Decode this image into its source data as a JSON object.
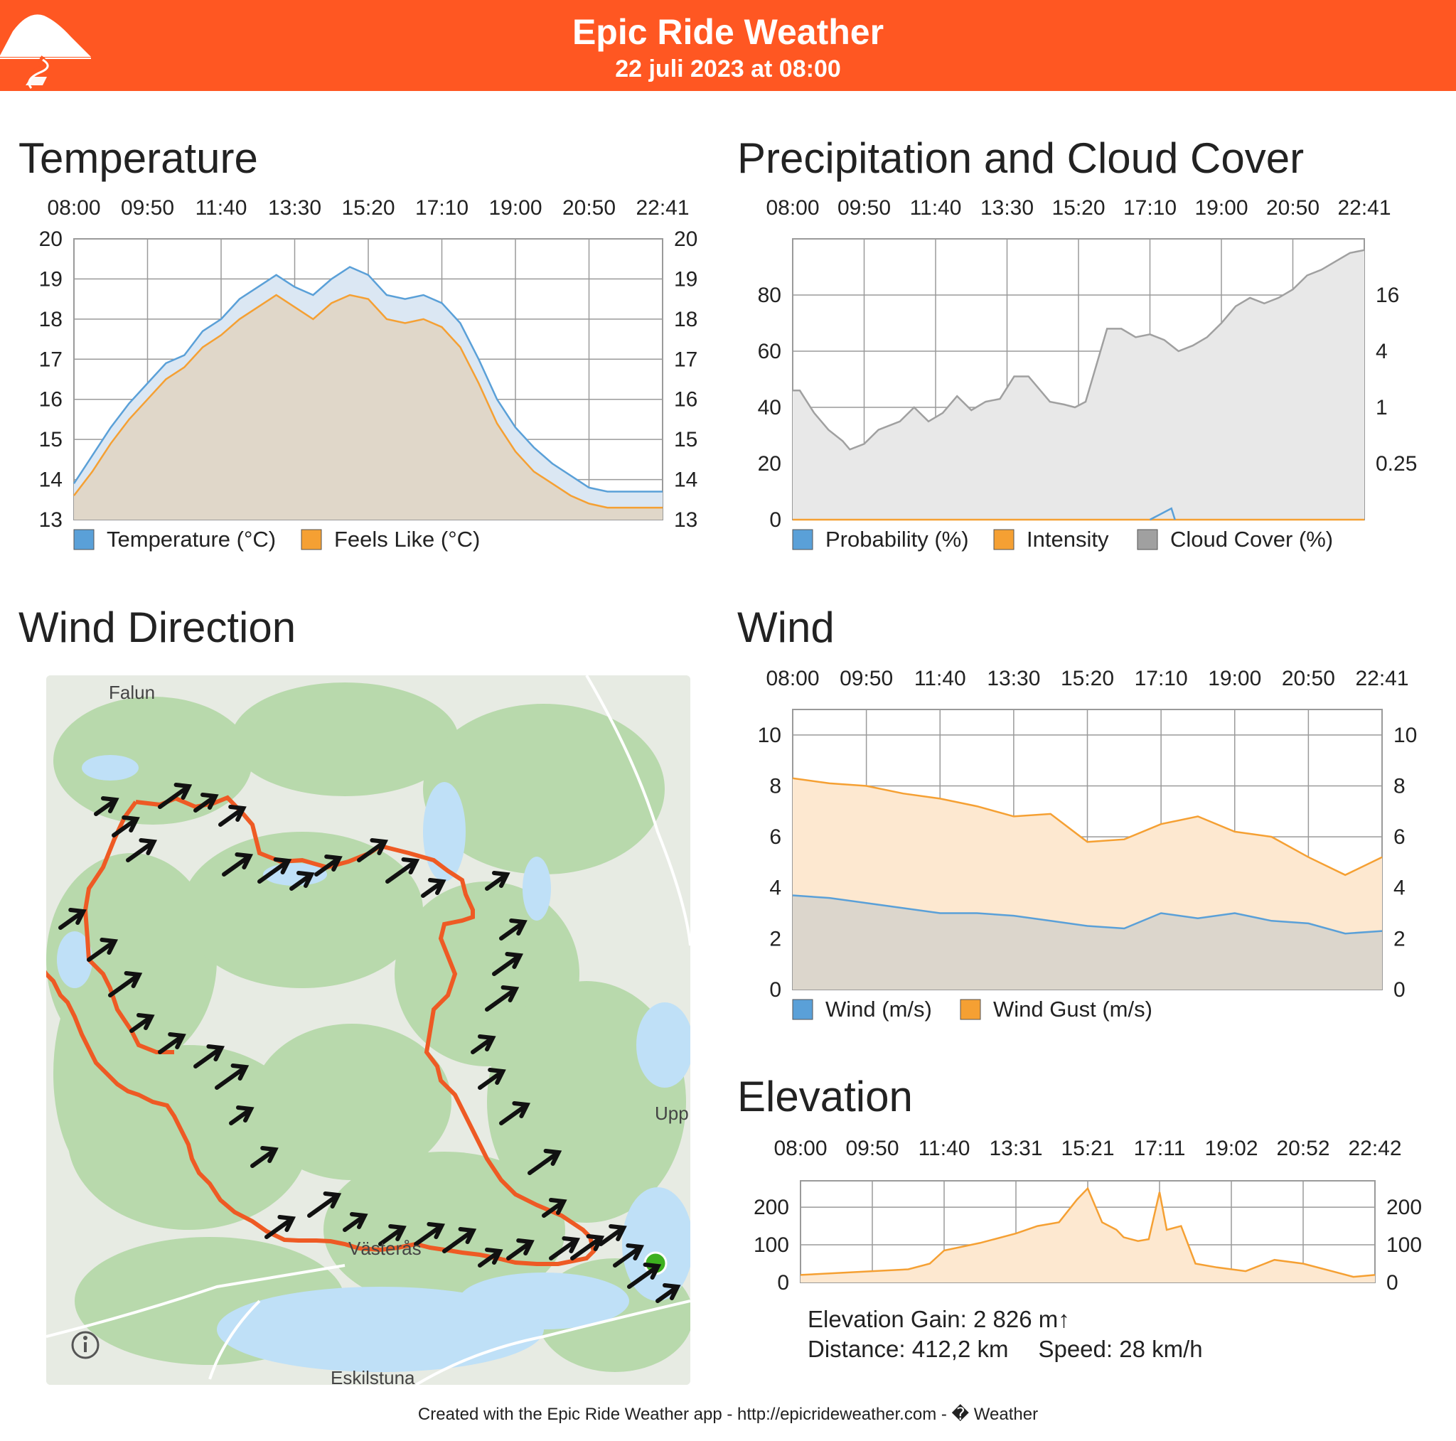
{
  "header": {
    "title": "Epic Ride Weather",
    "date": "22 juli 2023 at 08:00"
  },
  "sections": {
    "temperature": "Temperature",
    "precip": "Precipitation and Cloud Cover",
    "wind_direction": "Wind Direction",
    "wind": "Wind",
    "elevation": "Elevation"
  },
  "elevation_stats": {
    "gain": "Elevation Gain: 2 826 m↑",
    "distance": "Distance: 412,2 km",
    "speed": "Speed: 28 km/h"
  },
  "footer": "Created with the Epic Ride Weather app - http://epicrideweather.com - � Weather",
  "map": {
    "labels": [
      "Falun",
      "Västerås",
      "Eskilstuna",
      "Upp"
    ],
    "colors": {
      "route": "#ee5a24",
      "land": "#e7ebe3",
      "forest": "#b8d9ac",
      "water": "#bfe0f7",
      "start": "#3db01f",
      "arrow": "#111111"
    }
  },
  "colors": {
    "header": "#ff5722",
    "blue": "#5aa0d8",
    "orange": "#f5a033",
    "gray": "#a0a0a0"
  },
  "chart_data": [
    {
      "id": "temperature",
      "type": "area",
      "x_labels": [
        "08:00",
        "09:50",
        "11:40",
        "13:30",
        "15:20",
        "17:10",
        "19:00",
        "20:50",
        "22:41"
      ],
      "x_range": [
        0,
        8
      ],
      "ylim": [
        13,
        20
      ],
      "y_ticks": [
        "13",
        "14",
        "15",
        "16",
        "17",
        "18",
        "19",
        "20"
      ],
      "y_ticks_right": [
        "13",
        "14",
        "15",
        "16",
        "17",
        "18",
        "19",
        "20"
      ],
      "grid": true,
      "legend": "bottom",
      "series": [
        {
          "name": "Temperature (°C)",
          "color": "#5aa0d8",
          "fill": "#dbe7f3",
          "x": [
            0,
            0.25,
            0.5,
            0.75,
            1,
            1.25,
            1.5,
            1.75,
            2,
            2.25,
            2.5,
            2.75,
            3,
            3.25,
            3.5,
            3.75,
            4,
            4.25,
            4.5,
            4.75,
            5,
            5.25,
            5.5,
            5.75,
            6,
            6.25,
            6.5,
            6.75,
            7,
            7.25,
            7.5,
            7.75,
            8
          ],
          "values": [
            13.9,
            14.6,
            15.3,
            15.9,
            16.4,
            16.9,
            17.1,
            17.7,
            18.0,
            18.5,
            18.8,
            19.1,
            18.8,
            18.6,
            19.0,
            19.3,
            19.1,
            18.6,
            18.5,
            18.6,
            18.4,
            17.9,
            17.0,
            16.0,
            15.3,
            14.8,
            14.4,
            14.1,
            13.8,
            13.7,
            13.7,
            13.7,
            13.7
          ]
        },
        {
          "name": "Feels Like (°C)",
          "color": "#f5a033",
          "fill": "#e0d7c9",
          "x": [
            0,
            0.25,
            0.5,
            0.75,
            1,
            1.25,
            1.5,
            1.75,
            2,
            2.25,
            2.5,
            2.75,
            3,
            3.25,
            3.5,
            3.75,
            4,
            4.25,
            4.5,
            4.75,
            5,
            5.25,
            5.5,
            5.75,
            6,
            6.25,
            6.5,
            6.75,
            7,
            7.25,
            7.5,
            7.75,
            8
          ],
          "values": [
            13.6,
            14.2,
            14.9,
            15.5,
            16.0,
            16.5,
            16.8,
            17.3,
            17.6,
            18.0,
            18.3,
            18.6,
            18.3,
            18.0,
            18.4,
            18.6,
            18.5,
            18.0,
            17.9,
            18.0,
            17.8,
            17.3,
            16.4,
            15.4,
            14.7,
            14.2,
            13.9,
            13.6,
            13.4,
            13.3,
            13.3,
            13.3,
            13.3
          ]
        }
      ]
    },
    {
      "id": "precipitation",
      "type": "area",
      "x_labels": [
        "08:00",
        "09:50",
        "11:40",
        "13:30",
        "15:20",
        "17:10",
        "19:00",
        "20:50",
        "22:41"
      ],
      "x_range": [
        0,
        8
      ],
      "ylim": [
        0,
        100
      ],
      "y_ticks": [
        "0",
        "20",
        "40",
        "60",
        "80"
      ],
      "y_ticks_right": [
        "0.25",
        "1",
        "4",
        "16"
      ],
      "grid": true,
      "legend": "bottom",
      "series": [
        {
          "name": "Probability (%)",
          "color": "#5aa0d8",
          "x": [
            5.0,
            5.15,
            5.3,
            5.35
          ],
          "values": [
            0,
            2,
            4,
            0
          ]
        },
        {
          "name": "Intensity",
          "color": "#f5a033",
          "x": [
            0,
            8
          ],
          "values": [
            0,
            0
          ]
        },
        {
          "name": "Cloud Cover (%)",
          "color": "#a0a0a0",
          "fill": "#e8e8e8",
          "x": [
            0,
            0.1,
            0.3,
            0.5,
            0.7,
            0.8,
            1.0,
            1.2,
            1.5,
            1.7,
            1.9,
            2.1,
            2.3,
            2.5,
            2.7,
            2.9,
            3.1,
            3.3,
            3.6,
            3.8,
            3.95,
            4.1,
            4.4,
            4.6,
            4.8,
            5.0,
            5.2,
            5.4,
            5.6,
            5.8,
            6.0,
            6.2,
            6.4,
            6.6,
            6.8,
            7.0,
            7.2,
            7.4,
            7.6,
            7.8,
            8
          ],
          "values": [
            46,
            46,
            38,
            32,
            28,
            25,
            27,
            32,
            35,
            40,
            35,
            38,
            44,
            39,
            42,
            43,
            51,
            51,
            42,
            41,
            40,
            42,
            68,
            68,
            65,
            66,
            64,
            60,
            62,
            65,
            70,
            76,
            79,
            77,
            79,
            82,
            87,
            89,
            92,
            95,
            96
          ]
        }
      ]
    },
    {
      "id": "wind",
      "type": "area",
      "x_labels": [
        "08:00",
        "09:50",
        "11:40",
        "13:30",
        "15:20",
        "17:10",
        "19:00",
        "20:50",
        "22:41"
      ],
      "x_range": [
        0,
        8
      ],
      "ylim": [
        0,
        11
      ],
      "y_ticks": [
        "0",
        "2",
        "4",
        "6",
        "8",
        "10"
      ],
      "y_ticks_right": [
        "0",
        "2",
        "4",
        "6",
        "8",
        "10"
      ],
      "grid": true,
      "legend": "bottom",
      "series": [
        {
          "name": "Wind (m/s)",
          "color": "#5aa0d8",
          "fill": "#dcd6cc",
          "x": [
            0,
            0.5,
            1,
            1.5,
            2,
            2.5,
            3,
            3.5,
            4,
            4.5,
            5,
            5.5,
            6,
            6.5,
            7,
            7.5,
            8
          ],
          "values": [
            3.7,
            3.6,
            3.4,
            3.2,
            3.0,
            3.0,
            2.9,
            2.7,
            2.5,
            2.4,
            3.0,
            2.8,
            3.0,
            2.7,
            2.6,
            2.2,
            2.3
          ]
        },
        {
          "name": "Wind Gust (m/s)",
          "color": "#f5a033",
          "fill": "#fde8d0",
          "x": [
            0,
            0.5,
            1,
            1.5,
            2,
            2.5,
            3,
            3.5,
            4,
            4.5,
            5,
            5.5,
            6,
            6.5,
            7,
            7.5,
            8
          ],
          "values": [
            8.3,
            8.1,
            8.0,
            7.7,
            7.5,
            7.2,
            6.8,
            6.9,
            5.8,
            5.9,
            6.5,
            6.8,
            6.2,
            6.0,
            5.2,
            4.5,
            5.2
          ]
        }
      ]
    },
    {
      "id": "elevation",
      "type": "area",
      "x_labels": [
        "08:00",
        "09:50",
        "11:40",
        "13:31",
        "15:21",
        "17:11",
        "19:02",
        "20:52",
        "22:42"
      ],
      "x_range": [
        0,
        8
      ],
      "ylim": [
        0,
        270
      ],
      "y_ticks": [
        "0",
        "100",
        "200"
      ],
      "y_ticks_right": [
        "0",
        "100",
        "200"
      ],
      "grid": true,
      "legend": "none",
      "series": [
        {
          "name": "",
          "color": "#f5a033",
          "fill": "#fde8d0",
          "x": [
            0,
            0.5,
            1,
            1.5,
            1.8,
            2.0,
            2.5,
            3.0,
            3.3,
            3.6,
            3.85,
            4.0,
            4.2,
            4.4,
            4.5,
            4.7,
            4.85,
            5.0,
            5.1,
            5.3,
            5.5,
            5.8,
            6.2,
            6.6,
            7.0,
            7.4,
            7.7,
            8
          ],
          "values": [
            20,
            25,
            30,
            35,
            50,
            85,
            105,
            130,
            150,
            160,
            220,
            250,
            160,
            140,
            120,
            110,
            115,
            240,
            140,
            150,
            50,
            40,
            30,
            60,
            50,
            30,
            15,
            20
          ]
        }
      ]
    }
  ]
}
